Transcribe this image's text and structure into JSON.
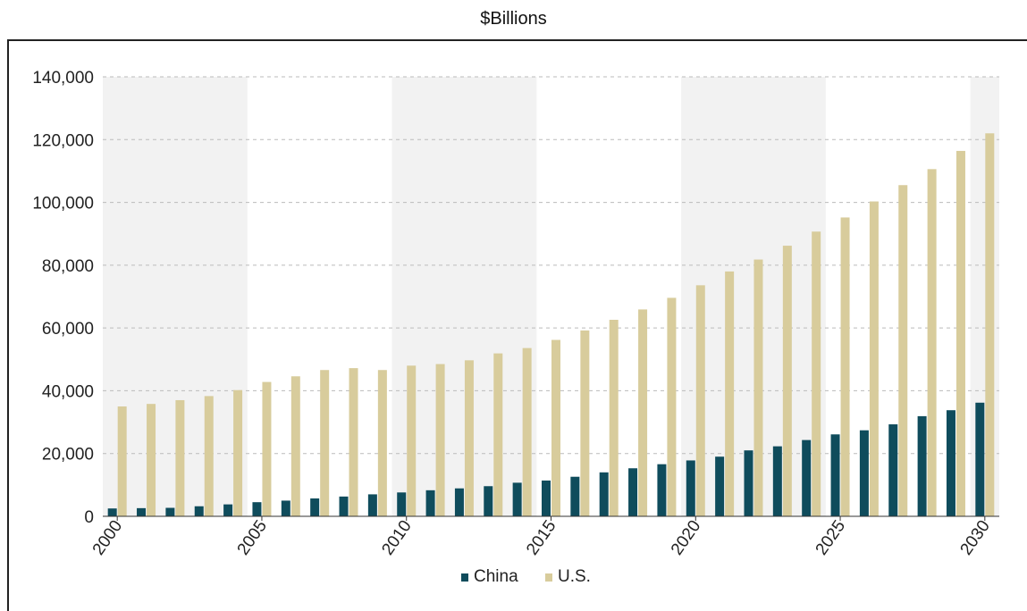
{
  "header": {
    "unit_label": "$Billions"
  },
  "colors": {
    "china": "#0f4c5c",
    "us": "#d8cc9c",
    "band": "#f2f2f2",
    "grid": "#bbbbbb",
    "axis": "#333333"
  },
  "chart_data": {
    "type": "bar",
    "title": "$Billions",
    "xlabel": "",
    "ylabel": "",
    "ylim": [
      0,
      140000
    ],
    "yticks": [
      0,
      20000,
      40000,
      60000,
      80000,
      100000,
      120000,
      140000
    ],
    "ytick_labels": [
      "0",
      "20,000",
      "40,000",
      "60,000",
      "80,000",
      "100,000",
      "120,000",
      "140,000"
    ],
    "x": [
      2000,
      2001,
      2002,
      2003,
      2004,
      2005,
      2006,
      2007,
      2008,
      2009,
      2010,
      2011,
      2012,
      2013,
      2014,
      2015,
      2016,
      2017,
      2018,
      2019,
      2020,
      2021,
      2022,
      2023,
      2024,
      2025,
      2026,
      2027,
      2028,
      2029,
      2030
    ],
    "xtick_labels": [
      "2000",
      "2005",
      "2010",
      "2015",
      "2020",
      "2025",
      "2030"
    ],
    "xtick_values": [
      2000,
      2005,
      2010,
      2015,
      2020,
      2025,
      2030
    ],
    "grid": true,
    "legend": "bottom-center",
    "series": [
      {
        "name": "China",
        "color": "#0f4c5c",
        "values": [
          2500,
          2600,
          2700,
          3200,
          3800,
          4500,
          5000,
          5700,
          6300,
          7000,
          7600,
          8300,
          8900,
          9600,
          10700,
          11400,
          12600,
          14000,
          15300,
          16600,
          17800,
          19000,
          21000,
          22300,
          24300,
          26100,
          27400,
          29300,
          31900,
          33800,
          36200
        ]
      },
      {
        "name": "U.S.",
        "color": "#d8cc9c",
        "values": [
          35000,
          35800,
          37000,
          38300,
          40200,
          42800,
          44600,
          46600,
          47200,
          46600,
          48000,
          48500,
          49700,
          51900,
          53600,
          56200,
          59200,
          62600,
          65900,
          69600,
          73600,
          78000,
          81800,
          86200,
          90700,
          95200,
          100300,
          105500,
          110600,
          116400,
          122000
        ]
      }
    ]
  }
}
